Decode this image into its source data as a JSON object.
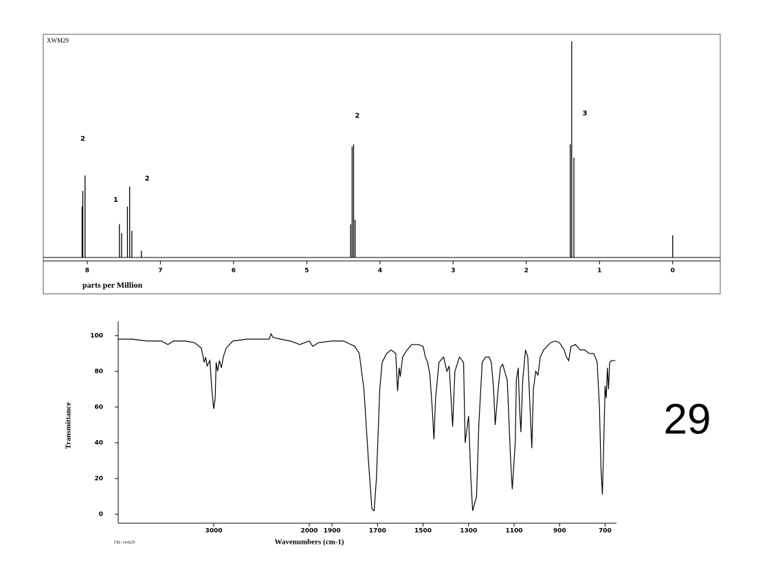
{
  "chart_data": [
    {
      "type": "stem",
      "title": "XWM29",
      "xlabel": "parts per Million",
      "xlim": [
        8.6,
        -0.65
      ],
      "ylim": [
        0,
        100
      ],
      "xticks": [
        8,
        7,
        6,
        5,
        4,
        3,
        2,
        1,
        0
      ],
      "x": [
        8.07,
        8.06,
        8.03,
        7.56,
        7.53,
        7.45,
        7.42,
        7.39,
        7.26,
        4.4,
        4.38,
        4.36,
        4.34,
        1.4,
        1.38,
        1.35,
        0
      ],
      "values": [
        23,
        30,
        37,
        15,
        11,
        23,
        32,
        12,
        3,
        15,
        50,
        51,
        17,
        51,
        97.5,
        45,
        10
      ],
      "color": "#000000",
      "annotations": [
        {
          "text": "2",
          "x": 8.06,
          "y": 53.6
        },
        {
          "text": "1",
          "x": 7.61,
          "y": 26
        },
        {
          "text": "2",
          "x": 7.18,
          "y": 35.6
        },
        {
          "text": "2",
          "x": 4.31,
          "y": 64
        },
        {
          "text": "3",
          "x": 1.2,
          "y": 65
        }
      ]
    },
    {
      "type": "line",
      "xlabel": "Wavenumbers (cm-1)",
      "ylabel": "Transmittance",
      "footnote": "File: xwm29",
      "xlim": [
        4000,
        650
      ],
      "x_scale_break": 2000,
      "ylim": [
        -5,
        108
      ],
      "xticks": [
        3000,
        2000,
        1900,
        1700,
        1500,
        1300,
        1100,
        900,
        700
      ],
      "yticks": [
        0,
        20,
        40,
        60,
        80,
        100
      ],
      "color": "#000000",
      "x": [
        4000,
        3850,
        3700,
        3550,
        3480,
        3420,
        3300,
        3200,
        3130,
        3100,
        3085,
        3070,
        3040,
        3020,
        3000,
        2985,
        2975,
        2960,
        2940,
        2920,
        2900,
        2870,
        2800,
        2650,
        2500,
        2420,
        2400,
        2380,
        2300,
        2200,
        2150,
        2100,
        2050,
        2000,
        1985,
        1960,
        1900,
        1850,
        1800,
        1780,
        1760,
        1740,
        1725,
        1715,
        1705,
        1690,
        1680,
        1660,
        1640,
        1620,
        1612,
        1605,
        1600,
        1590,
        1570,
        1550,
        1520,
        1500,
        1490,
        1480,
        1470,
        1460,
        1452,
        1445,
        1430,
        1410,
        1395,
        1385,
        1370,
        1360,
        1340,
        1322,
        1315,
        1300,
        1290,
        1282,
        1265,
        1255,
        1240,
        1225,
        1210,
        1200,
        1190,
        1183,
        1170,
        1160,
        1150,
        1130,
        1115,
        1108,
        1095,
        1090,
        1082,
        1076,
        1070,
        1062,
        1050,
        1040,
        1030,
        1022,
        1015,
        1005,
        995,
        985,
        970,
        940,
        920,
        900,
        880,
        870,
        860,
        850,
        830,
        810,
        790,
        770,
        750,
        735,
        725,
        718,
        712,
        706,
        700,
        695,
        690,
        685,
        680,
        672,
        665,
        655
      ],
      "values": [
        98,
        98,
        97,
        97,
        95,
        97,
        97,
        96,
        93,
        85,
        88,
        83,
        86,
        70,
        59,
        65,
        85,
        80,
        86,
        82,
        88,
        93,
        97,
        98,
        98,
        98,
        101,
        99,
        98,
        97,
        96,
        95,
        96,
        97,
        94,
        96,
        97,
        97,
        94,
        90,
        70,
        30,
        3,
        2,
        20,
        70,
        85,
        90,
        92,
        90,
        69,
        82,
        77,
        88,
        92,
        95,
        95,
        94,
        88,
        85,
        78,
        60,
        42,
        65,
        85,
        88,
        80,
        83,
        49,
        80,
        88,
        85,
        40,
        55,
        20,
        2,
        10,
        50,
        85,
        88,
        88,
        85,
        70,
        50,
        70,
        82,
        84,
        75,
        30,
        14,
        40,
        75,
        82,
        60,
        46,
        75,
        92,
        88,
        60,
        37,
        70,
        80,
        78,
        88,
        92,
        96,
        97,
        96,
        92,
        88,
        86,
        94,
        95,
        92,
        92,
        90,
        90,
        85,
        60,
        25,
        11,
        40,
        72,
        65,
        82,
        70,
        85,
        86,
        86,
        86
      ]
    }
  ],
  "page_label": "29"
}
